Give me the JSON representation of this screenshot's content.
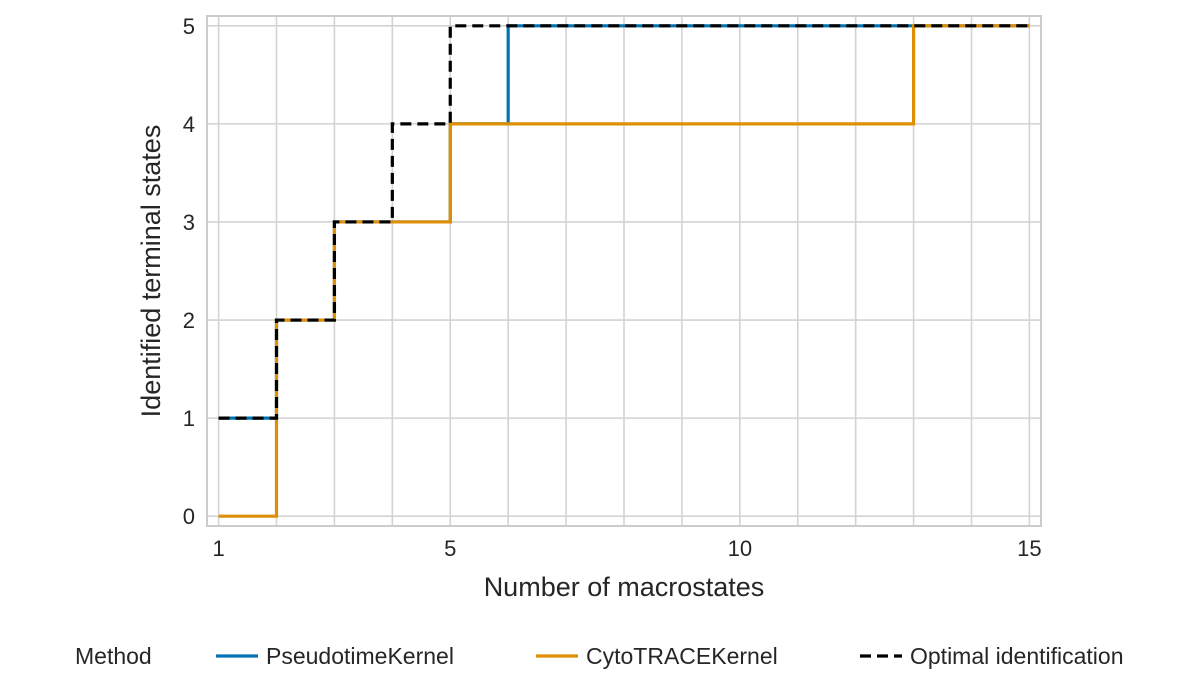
{
  "chart_data": {
    "type": "line",
    "title": "",
    "xlabel": "Number of macrostates",
    "ylabel": "Identified terminal states",
    "xlim": [
      0.8,
      15.2
    ],
    "ylim": [
      -0.1,
      5.1
    ],
    "xticks": [
      1,
      5,
      10,
      15
    ],
    "yticks": [
      0,
      1,
      2,
      3,
      4,
      5
    ],
    "x_minor_grid": [
      1,
      2,
      3,
      4,
      5,
      6,
      7,
      8,
      9,
      10,
      11,
      12,
      13,
      14,
      15
    ],
    "grid": true,
    "step": "post",
    "legend": {
      "title": "Method",
      "placement": "bottom",
      "entries": [
        "PseudotimeKernel",
        "CytoTRACEKernel",
        "Optimal identification"
      ]
    },
    "x": [
      1,
      2,
      3,
      4,
      5,
      6,
      7,
      8,
      9,
      10,
      11,
      12,
      13,
      14,
      15
    ],
    "series": [
      {
        "name": "PseudotimeKernel",
        "color": "#0173b2",
        "dash": "solid",
        "values": [
          1,
          2,
          3,
          3,
          4,
          5,
          5,
          5,
          5,
          5,
          5,
          5,
          5,
          5,
          5
        ]
      },
      {
        "name": "CytoTRACEKernel",
        "color": "#de8f05",
        "dash": "solid",
        "values": [
          0,
          2,
          3,
          3,
          4,
          4,
          4,
          4,
          4,
          4,
          4,
          4,
          5,
          5,
          5
        ]
      },
      {
        "name": "Optimal identification",
        "color": "#000000",
        "dash": "dashed",
        "values": [
          1,
          2,
          3,
          4,
          5,
          5,
          5,
          5,
          5,
          5,
          5,
          5,
          5,
          5,
          5
        ]
      }
    ]
  }
}
